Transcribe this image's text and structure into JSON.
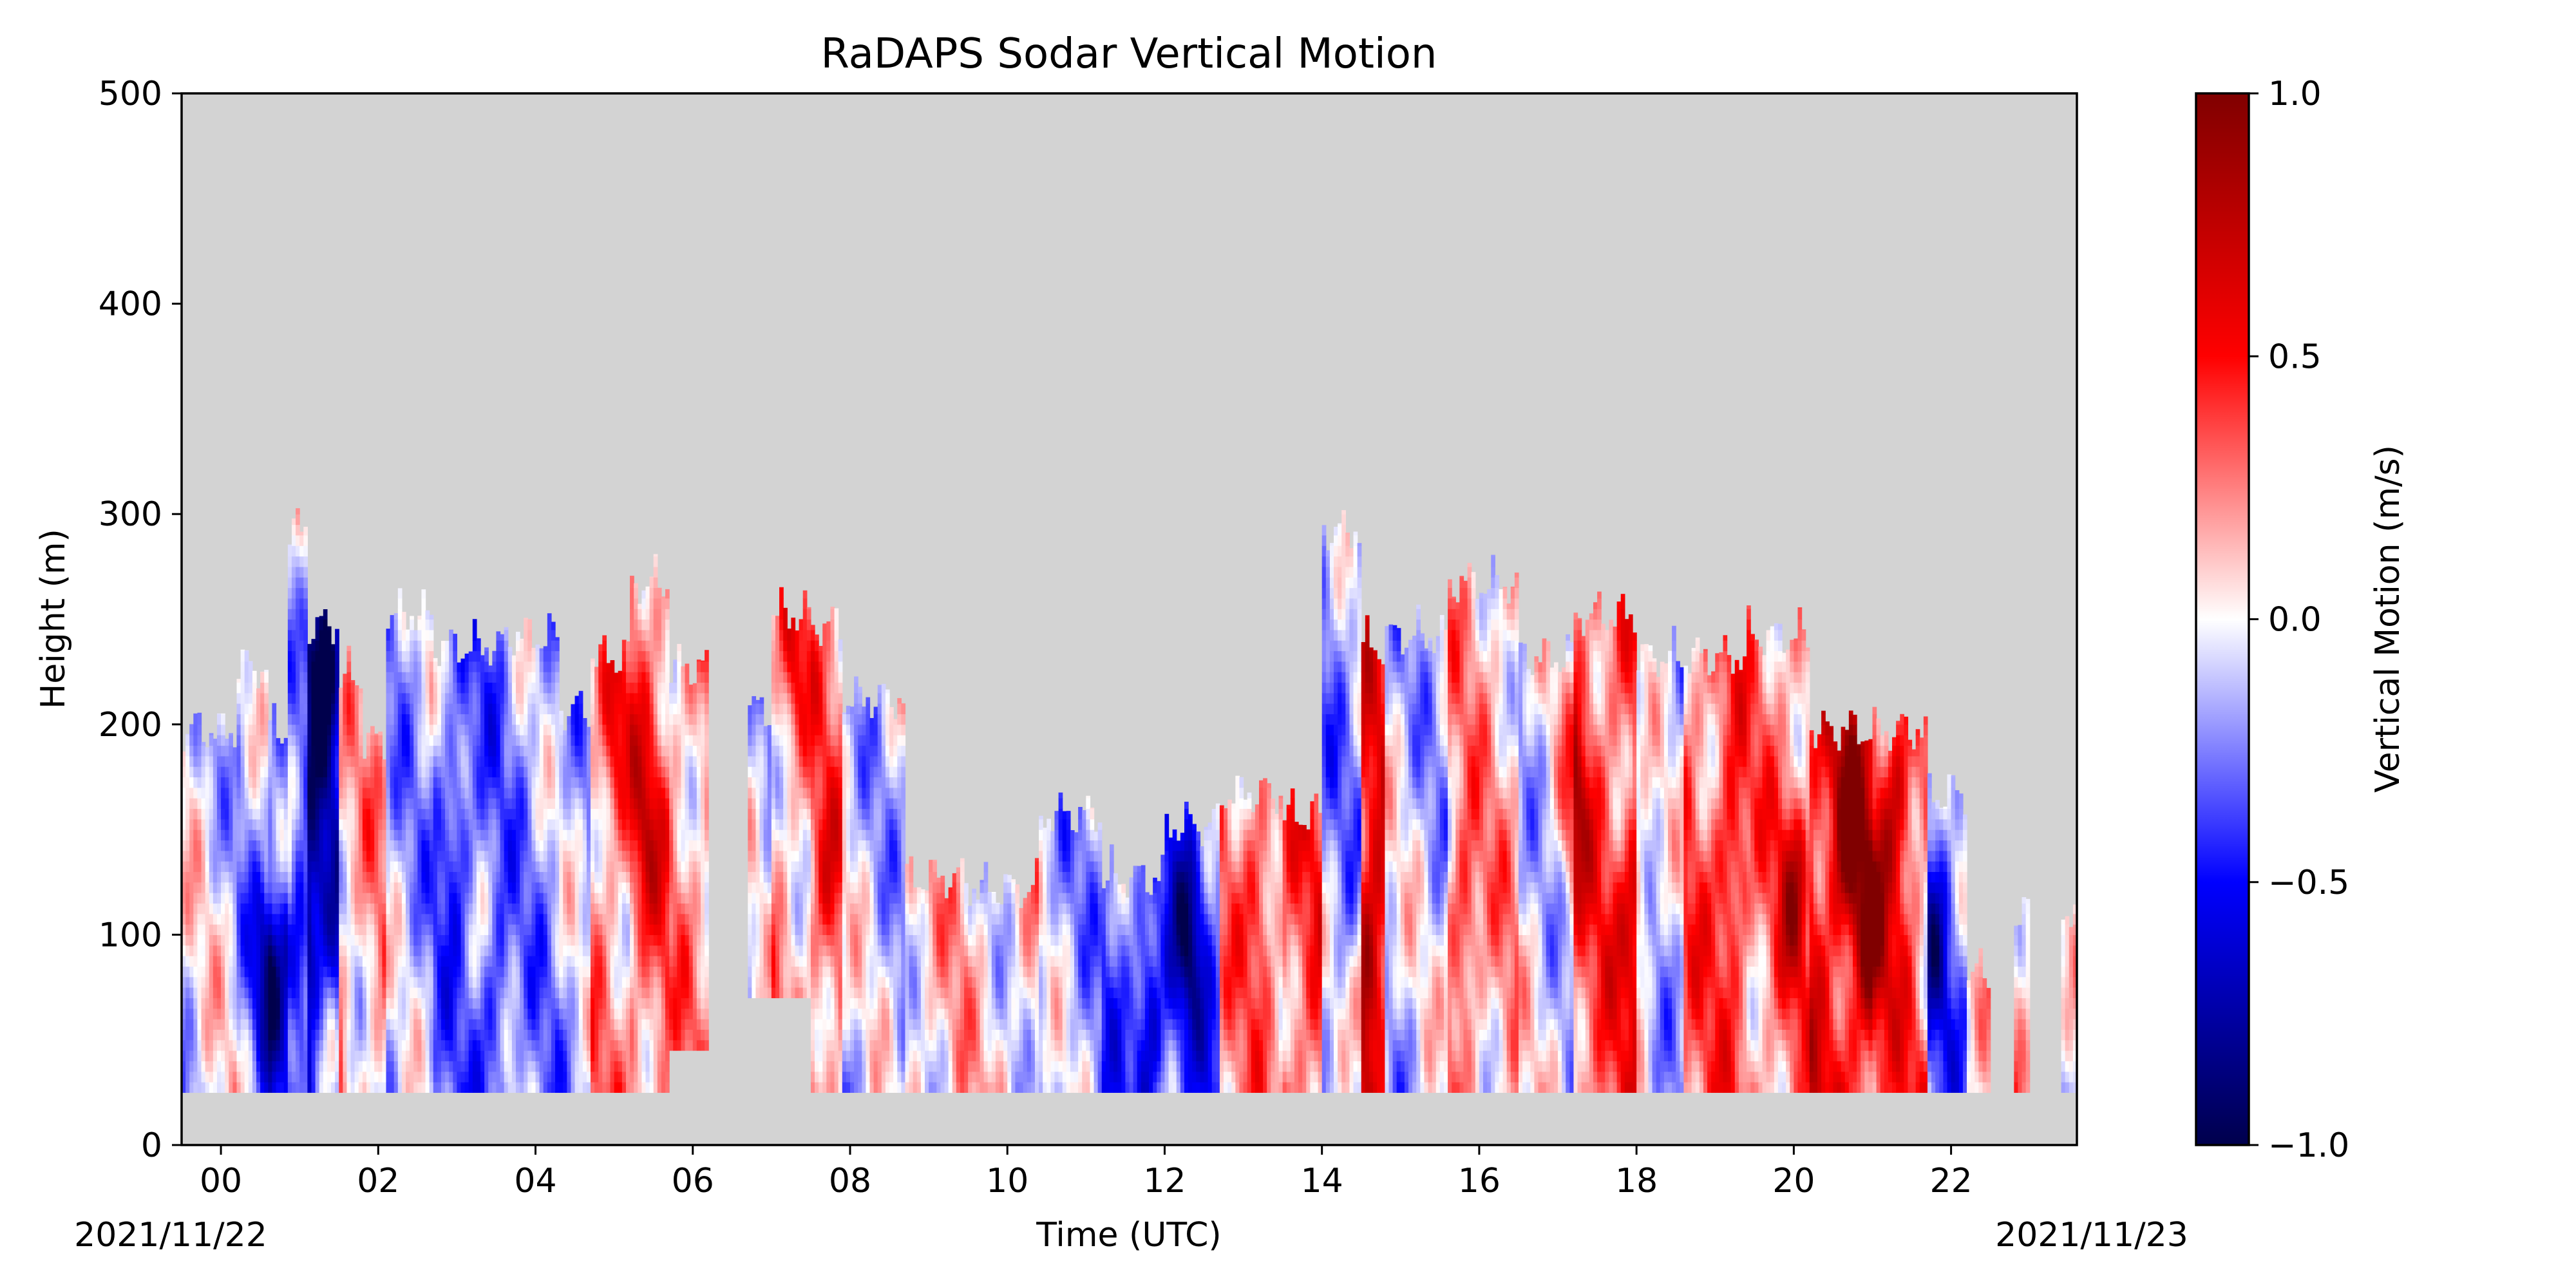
{
  "chart_data": {
    "type": "heatmap",
    "title": "RaDAPS Sodar Vertical Motion",
    "xlabel": "Time (UTC)",
    "ylabel": "Height (m)",
    "x_units": "hours UTC from 2021-11-22 00:00",
    "xlim": [
      -0.5,
      23.6
    ],
    "ylim": [
      0,
      500
    ],
    "x_ticks": [
      0,
      2,
      4,
      6,
      8,
      10,
      12,
      14,
      16,
      18,
      20,
      22
    ],
    "x_tick_labels": [
      "00",
      "02",
      "04",
      "06",
      "08",
      "10",
      "12",
      "14",
      "16",
      "18",
      "20",
      "22"
    ],
    "y_ticks": [
      0,
      100,
      200,
      300,
      400,
      500
    ],
    "y_tick_labels": [
      "0",
      "100",
      "200",
      "300",
      "400",
      "500"
    ],
    "date_start_label": "2021/11/22",
    "date_end_label": "2021/11/23",
    "grid": false,
    "missing_color": "#d3d3d3",
    "colorbar": {
      "label": "Vertical Motion (m/s)",
      "colormap": "seismic",
      "vmin": -1.0,
      "vmax": 1.0,
      "ticks": [
        -1.0,
        -0.5,
        0.0,
        0.5,
        1.0
      ],
      "tick_labels": [
        "−1.0",
        "−0.5",
        "0.0",
        "0.5",
        "1.0"
      ]
    },
    "min_height": 25,
    "bands": [
      {
        "t0": -0.5,
        "t1": 0.2,
        "top": 215,
        "bottom": 25,
        "w": -0.05
      },
      {
        "t0": 0.2,
        "t1": 0.6,
        "top": 245,
        "bottom": 25,
        "w": -0.15
      },
      {
        "t0": 0.6,
        "t1": 0.85,
        "top": 215,
        "bottom": 25,
        "w": -0.3
      },
      {
        "t0": 0.85,
        "t1": 1.1,
        "top": 310,
        "bottom": 25,
        "w": -0.1
      },
      {
        "t0": 1.1,
        "t1": 1.5,
        "top": 265,
        "bottom": 25,
        "w": -0.55
      },
      {
        "t0": 1.5,
        "t1": 1.8,
        "top": 240,
        "bottom": 25,
        "w": 0.1
      },
      {
        "t0": 1.8,
        "t1": 2.1,
        "top": 210,
        "bottom": 25,
        "w": 0.15
      },
      {
        "t0": 2.1,
        "t1": 2.7,
        "top": 270,
        "bottom": 25,
        "w": -0.15
      },
      {
        "t0": 2.7,
        "t1": 3.6,
        "top": 255,
        "bottom": 25,
        "w": -0.25
      },
      {
        "t0": 3.6,
        "t1": 4.3,
        "top": 260,
        "bottom": 25,
        "w": -0.2
      },
      {
        "t0": 4.3,
        "t1": 4.7,
        "top": 225,
        "bottom": 25,
        "w": -0.15
      },
      {
        "t0": 4.7,
        "t1": 5.2,
        "top": 250,
        "bottom": 25,
        "w": 0.2
      },
      {
        "t0": 5.2,
        "t1": 5.7,
        "top": 285,
        "bottom": 25,
        "w": 0.3
      },
      {
        "t0": 5.7,
        "t1": 6.2,
        "top": 245,
        "bottom": 45,
        "w": 0.2
      },
      {
        "t0": 6.7,
        "t1": 7.0,
        "top": 225,
        "bottom": 70,
        "w": -0.1
      },
      {
        "t0": 7.0,
        "t1": 7.5,
        "top": 270,
        "bottom": 70,
        "w": 0.15
      },
      {
        "t0": 7.5,
        "t1": 7.9,
        "top": 265,
        "bottom": 25,
        "w": 0.25
      },
      {
        "t0": 7.9,
        "t1": 8.7,
        "top": 230,
        "bottom": 25,
        "w": -0.1
      },
      {
        "t0": 8.7,
        "t1": 9.5,
        "top": 145,
        "bottom": 25,
        "w": 0.1
      },
      {
        "t0": 9.5,
        "t1": 10.4,
        "top": 140,
        "bottom": 25,
        "w": 0.05
      },
      {
        "t0": 10.4,
        "t1": 11.2,
        "top": 175,
        "bottom": 25,
        "w": -0.15
      },
      {
        "t0": 11.2,
        "t1": 12.0,
        "top": 145,
        "bottom": 25,
        "w": -0.3
      },
      {
        "t0": 12.0,
        "t1": 12.7,
        "top": 170,
        "bottom": 25,
        "w": -0.35
      },
      {
        "t0": 12.7,
        "t1": 13.5,
        "top": 185,
        "bottom": 25,
        "w": 0.2
      },
      {
        "t0": 13.5,
        "t1": 14.0,
        "top": 175,
        "bottom": 25,
        "w": 0.35
      },
      {
        "t0": 14.0,
        "t1": 14.5,
        "top": 310,
        "bottom": 25,
        "w": -0.2
      },
      {
        "t0": 14.5,
        "t1": 14.8,
        "top": 255,
        "bottom": 25,
        "w": 0.45
      },
      {
        "t0": 14.8,
        "t1": 15.6,
        "top": 260,
        "bottom": 25,
        "w": -0.1
      },
      {
        "t0": 15.6,
        "t1": 16.5,
        "top": 285,
        "bottom": 25,
        "w": 0.15
      },
      {
        "t0": 16.5,
        "t1": 17.2,
        "top": 250,
        "bottom": 25,
        "w": -0.05
      },
      {
        "t0": 17.2,
        "t1": 18.0,
        "top": 270,
        "bottom": 25,
        "w": 0.35
      },
      {
        "t0": 18.0,
        "t1": 18.6,
        "top": 250,
        "bottom": 25,
        "w": -0.1
      },
      {
        "t0": 18.6,
        "t1": 19.4,
        "top": 250,
        "bottom": 25,
        "w": 0.3
      },
      {
        "t0": 19.4,
        "t1": 20.2,
        "top": 260,
        "bottom": 25,
        "w": 0.25
      },
      {
        "t0": 20.2,
        "t1": 21.0,
        "top": 215,
        "bottom": 25,
        "w": 0.5
      },
      {
        "t0": 21.0,
        "t1": 21.7,
        "top": 215,
        "bottom": 25,
        "w": 0.35
      },
      {
        "t0": 21.7,
        "t1": 22.2,
        "top": 185,
        "bottom": 25,
        "w": -0.25
      },
      {
        "t0": 22.2,
        "t1": 22.5,
        "top": 100,
        "bottom": 25,
        "w": 0.05
      },
      {
        "t0": 22.8,
        "t1": 23.0,
        "top": 130,
        "bottom": 25,
        "w": 0.2
      },
      {
        "t0": 23.4,
        "t1": 23.6,
        "top": 130,
        "bottom": 25,
        "w": -0.05
      }
    ],
    "features": [
      {
        "t": 0.6,
        "z": 80,
        "w": -0.6
      },
      {
        "t": 1.0,
        "z": 90,
        "w": -0.7
      },
      {
        "t": 1.3,
        "z": 230,
        "w": -0.8
      },
      {
        "t": 1.4,
        "z": 50,
        "w": 0.35
      },
      {
        "t": 3.0,
        "z": 150,
        "w": -0.35
      },
      {
        "t": 3.5,
        "z": 60,
        "w": -0.3
      },
      {
        "t": 5.0,
        "z": 190,
        "w": 0.35
      },
      {
        "t": 5.4,
        "z": 150,
        "w": 0.3
      },
      {
        "t": 7.3,
        "z": 230,
        "w": 0.3
      },
      {
        "t": 7.7,
        "z": 120,
        "w": 0.25
      },
      {
        "t": 11.8,
        "z": 60,
        "w": -0.5
      },
      {
        "t": 12.3,
        "z": 100,
        "w": -0.45
      },
      {
        "t": 13.2,
        "z": 120,
        "w": 0.35
      },
      {
        "t": 14.6,
        "z": 80,
        "w": 0.6
      },
      {
        "t": 15.8,
        "z": 100,
        "w": 0.45
      },
      {
        "t": 17.2,
        "z": 160,
        "w": 0.4
      },
      {
        "t": 18.0,
        "z": 110,
        "w": 0.45
      },
      {
        "t": 19.2,
        "z": 130,
        "w": 0.4
      },
      {
        "t": 20.0,
        "z": 120,
        "w": 0.5
      },
      {
        "t": 20.7,
        "z": 150,
        "w": 0.65
      },
      {
        "t": 21.0,
        "z": 100,
        "w": 0.6
      },
      {
        "t": 21.3,
        "z": 160,
        "w": 0.45
      },
      {
        "t": 21.8,
        "z": 90,
        "w": -0.4
      }
    ]
  }
}
